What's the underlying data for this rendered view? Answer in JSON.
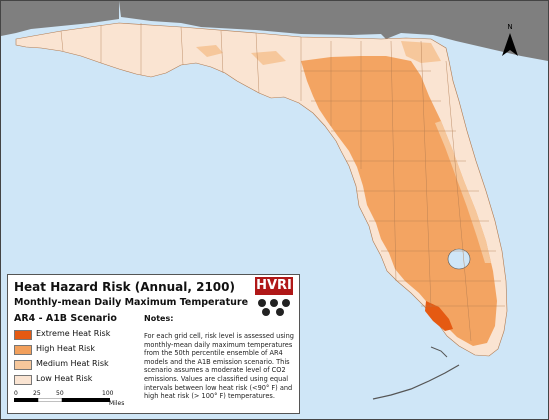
{
  "legend": {
    "title": "Heat Hazard Risk (Annual, 2100)",
    "subtitle": "Monthly-mean Daily Maximum Temperature",
    "scenario": "AR4 - A1B Scenario",
    "items": [
      {
        "label": "Extreme Heat Risk",
        "color": "#e55a12"
      },
      {
        "label": "High Heat Risk",
        "color": "#f2a05c"
      },
      {
        "label": "Medium Heat Risk",
        "color": "#f6c79b"
      },
      {
        "label": "Low Heat Risk",
        "color": "#fae4d2"
      }
    ],
    "notes_title": "Notes:",
    "notes_text": "For each grid cell, risk level is assessed using monthly-mean daily maximum temperatures from the 50th percentile ensemble of AR4 models and the A1B emission scenario.  This scenario assumes a moderate level of CO2 emissions. Values are classified using equal intervals between low heat risk (<90° F) and high heat risk (> 100° F) temperatures."
  },
  "logo": {
    "text": "HVRI"
  },
  "north_arrow": {
    "label": "N"
  },
  "scale_bar": {
    "ticks": [
      "0",
      "25",
      "50",
      "100"
    ],
    "unit": "Miles"
  },
  "colors": {
    "water": "#cfe6f7",
    "neighbor_states": "#7f7f7f",
    "low": "#fae4d2",
    "medium": "#f6c79b",
    "high": "#f2a05c",
    "county_lines": "#b07a50"
  }
}
